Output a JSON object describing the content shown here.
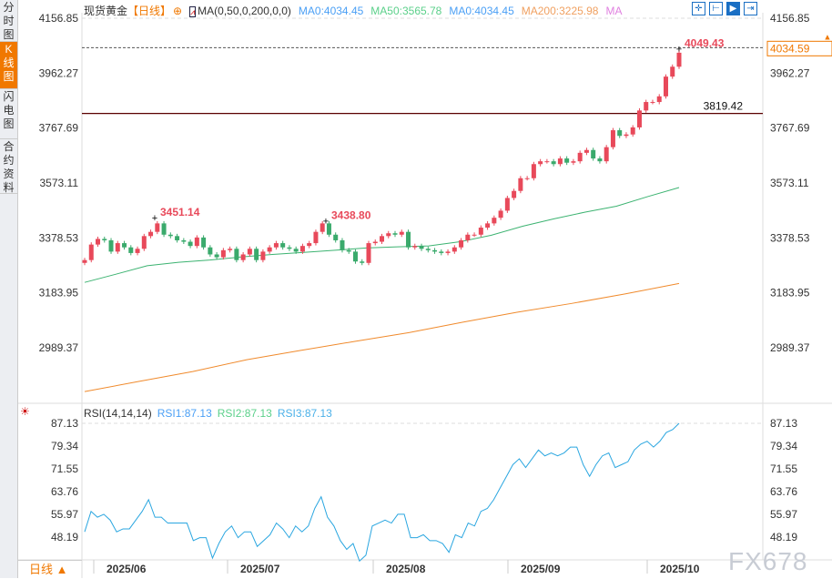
{
  "sidebar": {
    "items": [
      {
        "label": "分时图",
        "active": false
      },
      {
        "label": "K线图",
        "active": true
      },
      {
        "label": "闪电图",
        "active": false
      },
      {
        "label": "合约资料",
        "active": false
      }
    ]
  },
  "header": {
    "instrument": "现货黄金",
    "period": "【日线】",
    "indicator": "MA(0,50,0,200,0,0)",
    "ma0": "MA0:4034.45",
    "ma50": "MA50:3565.78",
    "ma0b": "MA0:4034.45",
    "ma200": "MA200:3225.98",
    "ma": "MA"
  },
  "toolbar": {
    "icons": [
      "crosshair-icon",
      "range-icon",
      "play-icon",
      "exit-icon"
    ]
  },
  "rsi_header": {
    "title": "RSI(14,14,14)",
    "rsi1": "RSI1:87.13",
    "rsi2": "RSI2:87.13",
    "rsi3": "RSI3:87.13"
  },
  "period_button": "日线 ▲",
  "watermark": "FX678",
  "colors": {
    "up": "#e8495a",
    "down": "#3aaa6c",
    "ma50": "#3cb371",
    "ma200": "#f08a2c",
    "rsi": "#2aa6e0",
    "level": "#5a0000",
    "current": "#1a6fc4",
    "current_label": "#f07800"
  },
  "chart_data": {
    "type": "candlestick",
    "price_axis": {
      "ticks": [
        "4156.85",
        "3962.27",
        "3767.69",
        "3573.11",
        "3378.53",
        "3183.95",
        "2989.37"
      ],
      "range": [
        2989.37,
        4156.85
      ]
    },
    "x_ticks": [
      "2025/06",
      "2025/07",
      "2025/08",
      "2025/09",
      "2025/10"
    ],
    "annotations": {
      "high1": "3451.14",
      "high2": "3438.80",
      "high3": "4049.43",
      "level": "3819.42",
      "current": "4034.59"
    },
    "level_value": 3819.42,
    "current_value": 4034.59,
    "closes": [
      3300,
      3355,
      3375,
      3370,
      3330,
      3360,
      3345,
      3325,
      3340,
      3385,
      3400,
      3430,
      3390,
      3385,
      3370,
      3365,
      3350,
      3380,
      3345,
      3320,
      3310,
      3335,
      3340,
      3300,
      3320,
      3340,
      3300,
      3330,
      3345,
      3360,
      3345,
      3340,
      3330,
      3350,
      3360,
      3400,
      3430,
      3390,
      3370,
      3335,
      3330,
      3295,
      3290,
      3360,
      3365,
      3385,
      3395,
      3390,
      3400,
      3345,
      3350,
      3340,
      3335,
      3330,
      3325,
      3330,
      3345,
      3370,
      3390,
      3390,
      3415,
      3430,
      3450,
      3475,
      3520,
      3545,
      3590,
      3590,
      3640,
      3650,
      3650,
      3640,
      3660,
      3645,
      3650,
      3680,
      3690,
      3660,
      3650,
      3700,
      3760,
      3740,
      3745,
      3770,
      3830,
      3860,
      3860,
      3880,
      3950,
      3985,
      4034.59
    ],
    "ma50": [
      3221,
      3250,
      3280,
      3292,
      3300,
      3311,
      3320,
      3327,
      3335,
      3343,
      3347,
      3350,
      3365,
      3388,
      3420,
      3446,
      3470,
      3491,
      3525,
      3557
    ],
    "ma200": [
      2834,
      2870,
      2905,
      2947,
      2980,
      3012,
      3043,
      3080,
      3115,
      3146,
      3180,
      3217
    ],
    "rsi_axis": {
      "ticks": [
        "87.13",
        "79.34",
        "71.55",
        "63.76",
        "55.97",
        "48.19"
      ],
      "range": [
        40,
        90
      ]
    },
    "rsi": [
      50,
      57,
      55,
      56,
      54,
      50,
      51,
      51,
      54,
      57,
      61,
      55,
      55,
      53,
      53,
      53,
      53,
      47,
      48,
      48,
      41,
      46,
      50,
      52,
      48,
      50,
      50,
      45,
      47,
      49,
      53,
      51,
      48,
      52,
      50,
      52,
      58,
      62,
      55,
      52,
      47,
      44,
      46,
      40,
      42,
      52,
      53,
      54,
      53,
      56,
      56,
      48,
      48,
      49,
      47,
      47,
      46,
      43,
      49,
      48,
      53,
      52,
      57,
      58,
      61,
      65,
      69,
      73,
      75,
      72,
      75,
      78,
      76,
      77,
      76,
      77,
      79,
      79,
      73,
      69,
      73,
      76,
      77,
      72,
      73,
      74,
      78,
      80,
      81,
      79,
      81,
      84,
      85,
      87.13
    ]
  }
}
